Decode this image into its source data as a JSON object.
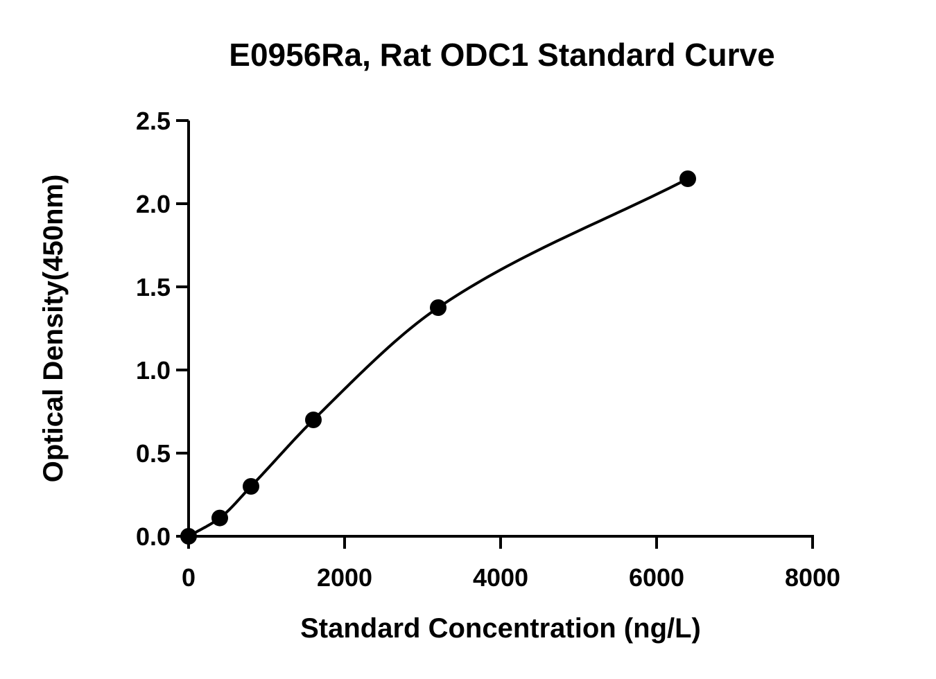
{
  "chart_data": {
    "type": "scatter",
    "title": "E0956Ra, Rat ODC1 Standard Curve",
    "xlabel": "Standard Concentration (ng/L)",
    "ylabel": "Optical Density(450nm)",
    "xlim": [
      0,
      8000
    ],
    "ylim": [
      0,
      2.5
    ],
    "x_ticks": [
      0,
      2000,
      4000,
      6000,
      8000
    ],
    "x_tick_labels": [
      "0",
      "2000",
      "4000",
      "6000",
      "8000"
    ],
    "y_ticks": [
      0,
      0.5,
      1.0,
      1.5,
      2.0,
      2.5
    ],
    "y_tick_labels": [
      "0.0",
      "0.5",
      "1.0",
      "1.5",
      "2.0",
      "2.5"
    ],
    "grid": false,
    "fit_curve": true,
    "series": [
      {
        "x": [
          0,
          400,
          800,
          1600,
          3200,
          6400
        ],
        "y": [
          0.0,
          0.11,
          0.3,
          0.7,
          1.375,
          2.15
        ]
      }
    ],
    "colors": {
      "marker": "#000000",
      "line": "#000000"
    }
  }
}
